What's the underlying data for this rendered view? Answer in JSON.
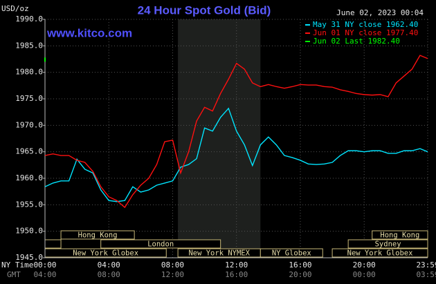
{
  "chart_data": {
    "type": "line",
    "title": "24 Hour Spot Gold (Bid)",
    "site": "www.kitco.com",
    "unit_label": "USD/oz",
    "timestamp": "June 02, 2023 00:04",
    "x_row_label": "NY Time",
    "x2_row_label": "GMT",
    "xlim": [
      0,
      23.98
    ],
    "ylim": [
      1945,
      1990
    ],
    "yticks": [
      {
        "value": 1945,
        "label": "1945.0"
      },
      {
        "value": 1950,
        "label": "1950.0"
      },
      {
        "value": 1955,
        "label": "1955.0"
      },
      {
        "value": 1960,
        "label": "1960.0"
      },
      {
        "value": 1965,
        "label": "1965.0"
      },
      {
        "value": 1970,
        "label": "1970.0"
      },
      {
        "value": 1975,
        "label": "1975.0"
      },
      {
        "value": 1980,
        "label": "1980.0"
      },
      {
        "value": 1985,
        "label": "1985.0"
      },
      {
        "value": 1990,
        "label": "1990.0"
      }
    ],
    "xticks": [
      {
        "value": 0,
        "label": "00:00"
      },
      {
        "value": 4,
        "label": "04:00"
      },
      {
        "value": 8,
        "label": "08:00"
      },
      {
        "value": 12,
        "label": "12:00"
      },
      {
        "value": 16,
        "label": "16:00"
      },
      {
        "value": 20,
        "label": "20:00"
      },
      {
        "value": 23.98,
        "label": "23:59"
      }
    ],
    "x2_labels": [
      "04:00",
      "08:00",
      "12:00",
      "16:00",
      "20:00",
      "00:00",
      "03:59"
    ],
    "grid": true,
    "highlight": {
      "start": 8.33,
      "end": 13.5,
      "color": "#1e201e"
    },
    "sessions": [
      {
        "name": "Hong Kong",
        "start": 1,
        "end": 5.6,
        "row": 1
      },
      {
        "start": 0,
        "end": 1,
        "row": 2
      },
      {
        "name": "London",
        "start": 3.5,
        "end": 11,
        "row": 2
      },
      {
        "name": "New York Globex",
        "start": 0,
        "end": 7.6,
        "row": 3
      },
      {
        "name": "New York NYMEX",
        "start": 8.33,
        "end": 13.5,
        "row": 3
      },
      {
        "name": "NY Globex",
        "start": 13.5,
        "end": 17.4,
        "row": 3
      },
      {
        "name": "Hong Kong",
        "start": 20.5,
        "end": 23.98,
        "row": 1
      },
      {
        "name": "Sydney",
        "start": 19,
        "end": 23.98,
        "row": 2
      },
      {
        "name": "New York Globex",
        "start": 18,
        "end": 23.98,
        "row": 3
      }
    ],
    "series": [
      {
        "name": "May 31 NY close 1962.40",
        "color": "#00e5ff",
        "x": [
          0,
          0.5,
          1,
          1.5,
          2,
          2.5,
          3,
          3.5,
          4,
          4.5,
          5,
          5.5,
          6,
          6.5,
          7,
          7.5,
          8,
          8.5,
          9,
          9.5,
          10,
          10.5,
          11,
          11.5,
          12,
          12.5,
          13,
          13.5,
          14,
          14.5,
          15,
          15.5,
          16,
          16.5,
          17,
          17.5,
          18,
          18.5,
          19,
          19.5,
          20,
          20.5,
          21,
          21.5,
          22,
          22.5,
          23,
          23.5,
          23.98
        ],
        "values": [
          1958.4,
          1959.1,
          1959.5,
          1959.5,
          1963.6,
          1961.7,
          1961.0,
          1957.8,
          1955.8,
          1955.6,
          1955.8,
          1958.4,
          1957.4,
          1957.8,
          1958.7,
          1959.1,
          1959.5,
          1962.1,
          1962.6,
          1963.7,
          1969.5,
          1968.9,
          1971.5,
          1973.2,
          1968.9,
          1966.3,
          1962.4,
          1966.3,
          1967.8,
          1966.3,
          1964.3,
          1963.9,
          1963.4,
          1962.7,
          1962.6,
          1962.7,
          1963.0,
          1964.3,
          1965.2,
          1965.2,
          1965.0,
          1965.2,
          1965.2,
          1964.7,
          1964.7,
          1965.2,
          1965.2,
          1965.6,
          1965.0
        ]
      },
      {
        "name": "Jun 01 NY close 1977.40",
        "color": "#ff1010",
        "x": [
          0,
          0.5,
          1,
          1.5,
          2,
          2.5,
          3,
          3.5,
          4,
          4.5,
          5,
          5.5,
          6,
          6.5,
          7,
          7.5,
          8,
          8.5,
          9,
          9.5,
          10,
          10.5,
          11,
          11.5,
          12,
          12.5,
          13,
          13.5,
          14,
          14.5,
          15,
          15.5,
          16,
          16.5,
          17,
          17.5,
          18,
          18.5,
          19,
          19.5,
          20,
          20.5,
          21,
          21.5,
          22,
          22.5,
          23,
          23.5,
          23.98
        ],
        "values": [
          1964.3,
          1964.6,
          1964.3,
          1964.3,
          1963.4,
          1963.0,
          1961.3,
          1958.4,
          1956.5,
          1955.8,
          1954.5,
          1956.9,
          1958.7,
          1960.0,
          1962.6,
          1966.9,
          1967.2,
          1961.0,
          1965.0,
          1970.8,
          1973.4,
          1972.7,
          1976.0,
          1978.7,
          1981.7,
          1980.6,
          1978.0,
          1977.3,
          1977.7,
          1977.3,
          1977.0,
          1977.3,
          1977.7,
          1977.6,
          1977.6,
          1977.3,
          1977.2,
          1976.7,
          1976.4,
          1976.0,
          1975.8,
          1975.7,
          1975.8,
          1975.4,
          1978.0,
          1979.3,
          1980.6,
          1983.2,
          1982.6
        ]
      },
      {
        "name": "Jun 02 Last 1982.40",
        "color": "#00ff00",
        "x": [
          0
        ],
        "values": [
          1982.4
        ]
      }
    ]
  }
}
